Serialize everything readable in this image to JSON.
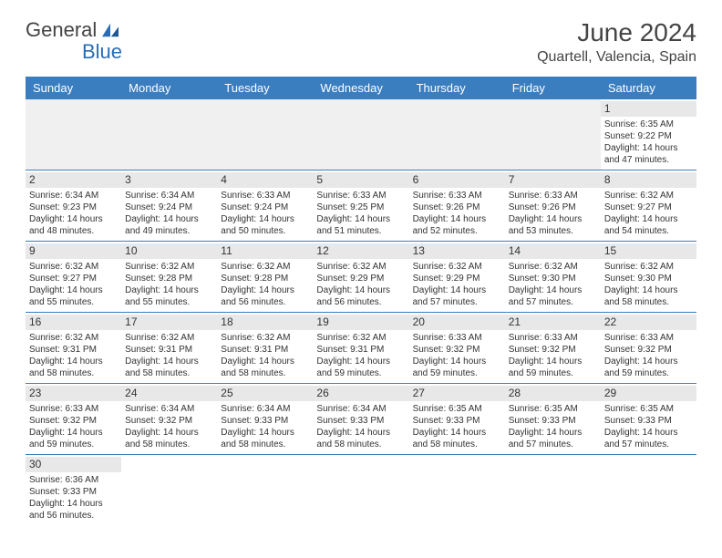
{
  "logo": {
    "general": "General",
    "blue": "Blue"
  },
  "title": "June 2024",
  "location": "Quartell, Valencia, Spain",
  "colors": {
    "header_bg": "#3b7ec0",
    "header_text": "#ffffff",
    "daynum_bg": "#e8e8e8",
    "empty_bg": "#f0f0f0",
    "border": "#3b7ec0"
  },
  "dayNames": [
    "Sunday",
    "Monday",
    "Tuesday",
    "Wednesday",
    "Thursday",
    "Friday",
    "Saturday"
  ],
  "weeks": [
    [
      null,
      null,
      null,
      null,
      null,
      null,
      {
        "n": "1",
        "sunrise": "Sunrise: 6:35 AM",
        "sunset": "Sunset: 9:22 PM",
        "daylight": "Daylight: 14 hours and 47 minutes."
      }
    ],
    [
      {
        "n": "2",
        "sunrise": "Sunrise: 6:34 AM",
        "sunset": "Sunset: 9:23 PM",
        "daylight": "Daylight: 14 hours and 48 minutes."
      },
      {
        "n": "3",
        "sunrise": "Sunrise: 6:34 AM",
        "sunset": "Sunset: 9:24 PM",
        "daylight": "Daylight: 14 hours and 49 minutes."
      },
      {
        "n": "4",
        "sunrise": "Sunrise: 6:33 AM",
        "sunset": "Sunset: 9:24 PM",
        "daylight": "Daylight: 14 hours and 50 minutes."
      },
      {
        "n": "5",
        "sunrise": "Sunrise: 6:33 AM",
        "sunset": "Sunset: 9:25 PM",
        "daylight": "Daylight: 14 hours and 51 minutes."
      },
      {
        "n": "6",
        "sunrise": "Sunrise: 6:33 AM",
        "sunset": "Sunset: 9:26 PM",
        "daylight": "Daylight: 14 hours and 52 minutes."
      },
      {
        "n": "7",
        "sunrise": "Sunrise: 6:33 AM",
        "sunset": "Sunset: 9:26 PM",
        "daylight": "Daylight: 14 hours and 53 minutes."
      },
      {
        "n": "8",
        "sunrise": "Sunrise: 6:32 AM",
        "sunset": "Sunset: 9:27 PM",
        "daylight": "Daylight: 14 hours and 54 minutes."
      }
    ],
    [
      {
        "n": "9",
        "sunrise": "Sunrise: 6:32 AM",
        "sunset": "Sunset: 9:27 PM",
        "daylight": "Daylight: 14 hours and 55 minutes."
      },
      {
        "n": "10",
        "sunrise": "Sunrise: 6:32 AM",
        "sunset": "Sunset: 9:28 PM",
        "daylight": "Daylight: 14 hours and 55 minutes."
      },
      {
        "n": "11",
        "sunrise": "Sunrise: 6:32 AM",
        "sunset": "Sunset: 9:28 PM",
        "daylight": "Daylight: 14 hours and 56 minutes."
      },
      {
        "n": "12",
        "sunrise": "Sunrise: 6:32 AM",
        "sunset": "Sunset: 9:29 PM",
        "daylight": "Daylight: 14 hours and 56 minutes."
      },
      {
        "n": "13",
        "sunrise": "Sunrise: 6:32 AM",
        "sunset": "Sunset: 9:29 PM",
        "daylight": "Daylight: 14 hours and 57 minutes."
      },
      {
        "n": "14",
        "sunrise": "Sunrise: 6:32 AM",
        "sunset": "Sunset: 9:30 PM",
        "daylight": "Daylight: 14 hours and 57 minutes."
      },
      {
        "n": "15",
        "sunrise": "Sunrise: 6:32 AM",
        "sunset": "Sunset: 9:30 PM",
        "daylight": "Daylight: 14 hours and 58 minutes."
      }
    ],
    [
      {
        "n": "16",
        "sunrise": "Sunrise: 6:32 AM",
        "sunset": "Sunset: 9:31 PM",
        "daylight": "Daylight: 14 hours and 58 minutes."
      },
      {
        "n": "17",
        "sunrise": "Sunrise: 6:32 AM",
        "sunset": "Sunset: 9:31 PM",
        "daylight": "Daylight: 14 hours and 58 minutes."
      },
      {
        "n": "18",
        "sunrise": "Sunrise: 6:32 AM",
        "sunset": "Sunset: 9:31 PM",
        "daylight": "Daylight: 14 hours and 58 minutes."
      },
      {
        "n": "19",
        "sunrise": "Sunrise: 6:32 AM",
        "sunset": "Sunset: 9:31 PM",
        "daylight": "Daylight: 14 hours and 59 minutes."
      },
      {
        "n": "20",
        "sunrise": "Sunrise: 6:33 AM",
        "sunset": "Sunset: 9:32 PM",
        "daylight": "Daylight: 14 hours and 59 minutes."
      },
      {
        "n": "21",
        "sunrise": "Sunrise: 6:33 AM",
        "sunset": "Sunset: 9:32 PM",
        "daylight": "Daylight: 14 hours and 59 minutes."
      },
      {
        "n": "22",
        "sunrise": "Sunrise: 6:33 AM",
        "sunset": "Sunset: 9:32 PM",
        "daylight": "Daylight: 14 hours and 59 minutes."
      }
    ],
    [
      {
        "n": "23",
        "sunrise": "Sunrise: 6:33 AM",
        "sunset": "Sunset: 9:32 PM",
        "daylight": "Daylight: 14 hours and 59 minutes."
      },
      {
        "n": "24",
        "sunrise": "Sunrise: 6:34 AM",
        "sunset": "Sunset: 9:32 PM",
        "daylight": "Daylight: 14 hours and 58 minutes."
      },
      {
        "n": "25",
        "sunrise": "Sunrise: 6:34 AM",
        "sunset": "Sunset: 9:33 PM",
        "daylight": "Daylight: 14 hours and 58 minutes."
      },
      {
        "n": "26",
        "sunrise": "Sunrise: 6:34 AM",
        "sunset": "Sunset: 9:33 PM",
        "daylight": "Daylight: 14 hours and 58 minutes."
      },
      {
        "n": "27",
        "sunrise": "Sunrise: 6:35 AM",
        "sunset": "Sunset: 9:33 PM",
        "daylight": "Daylight: 14 hours and 58 minutes."
      },
      {
        "n": "28",
        "sunrise": "Sunrise: 6:35 AM",
        "sunset": "Sunset: 9:33 PM",
        "daylight": "Daylight: 14 hours and 57 minutes."
      },
      {
        "n": "29",
        "sunrise": "Sunrise: 6:35 AM",
        "sunset": "Sunset: 9:33 PM",
        "daylight": "Daylight: 14 hours and 57 minutes."
      }
    ],
    [
      {
        "n": "30",
        "sunrise": "Sunrise: 6:36 AM",
        "sunset": "Sunset: 9:33 PM",
        "daylight": "Daylight: 14 hours and 56 minutes."
      },
      null,
      null,
      null,
      null,
      null,
      null
    ]
  ]
}
